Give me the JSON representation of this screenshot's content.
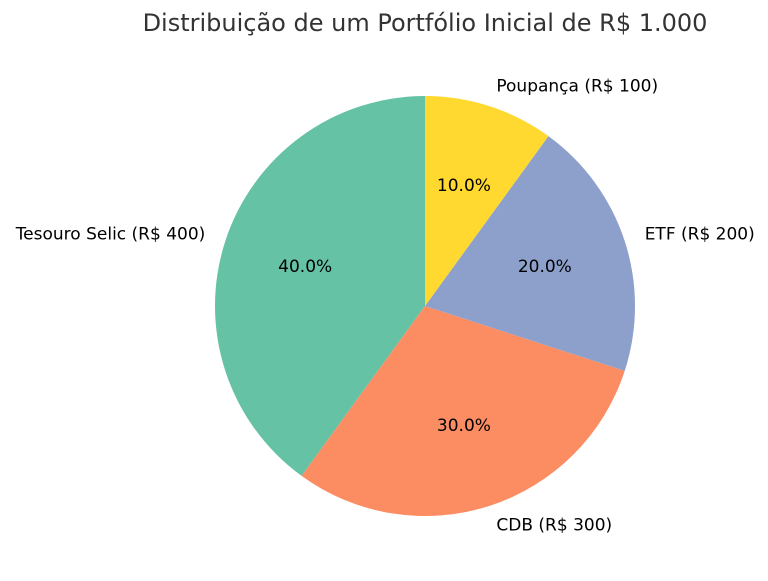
{
  "chart_data": {
    "type": "pie",
    "title": "Distribuição de um Portfólio Inicial de R$ 1.000",
    "categories": [
      "Tesouro Selic (R$ 400)",
      "CDB (R$ 300)",
      "ETF (R$ 200)",
      "Poupança (R$ 100)"
    ],
    "values": [
      40,
      30,
      20,
      10
    ],
    "value_labels": [
      "40.0%",
      "30.0%",
      "20.0%",
      "10.0%"
    ],
    "colors": [
      "#66c2a5",
      "#fc8d62",
      "#8da0cb",
      "#ffd92f"
    ]
  }
}
